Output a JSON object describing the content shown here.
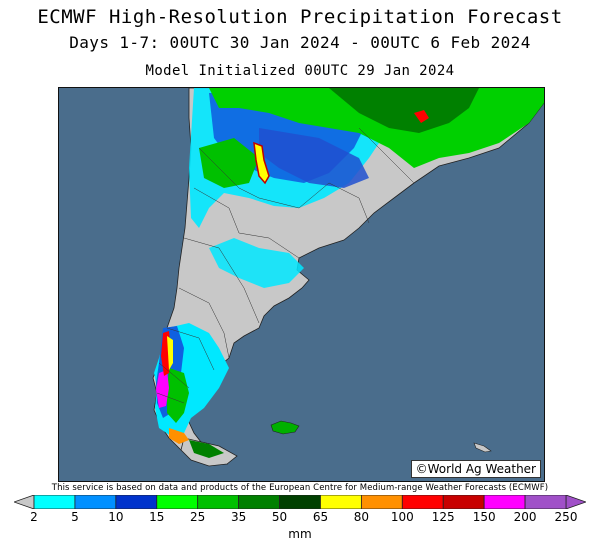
{
  "header": {
    "title": "ECMWF High-Resolution Precipitation Forecast",
    "period": "Days 1-7: 00UTC 30 Jan 2024 - 00UTC 6 Feb 2024",
    "init": "Model Initialized 00UTC 29 Jan 2024"
  },
  "map": {
    "credit": "©World Ag Weather",
    "ocean_color": "#4a6d8c",
    "land_color": "#c8c8c8"
  },
  "disclaimer": "This service is based on data and products of the European Centre for Medium-range Weather Forecasts (ECMWF)",
  "legend": {
    "units": "mm",
    "ticks": [
      "2",
      "5",
      "10",
      "15",
      "25",
      "35",
      "50",
      "65",
      "80",
      "100",
      "125",
      "150",
      "200",
      "250"
    ],
    "colors": [
      "#00ffff",
      "#0090ff",
      "#0033cc",
      "#00ff00",
      "#00c000",
      "#008000",
      "#004000",
      "#ffff00",
      "#ff9000",
      "#ff0000",
      "#c80000",
      "#ff00ff",
      "#a050c8"
    ]
  }
}
